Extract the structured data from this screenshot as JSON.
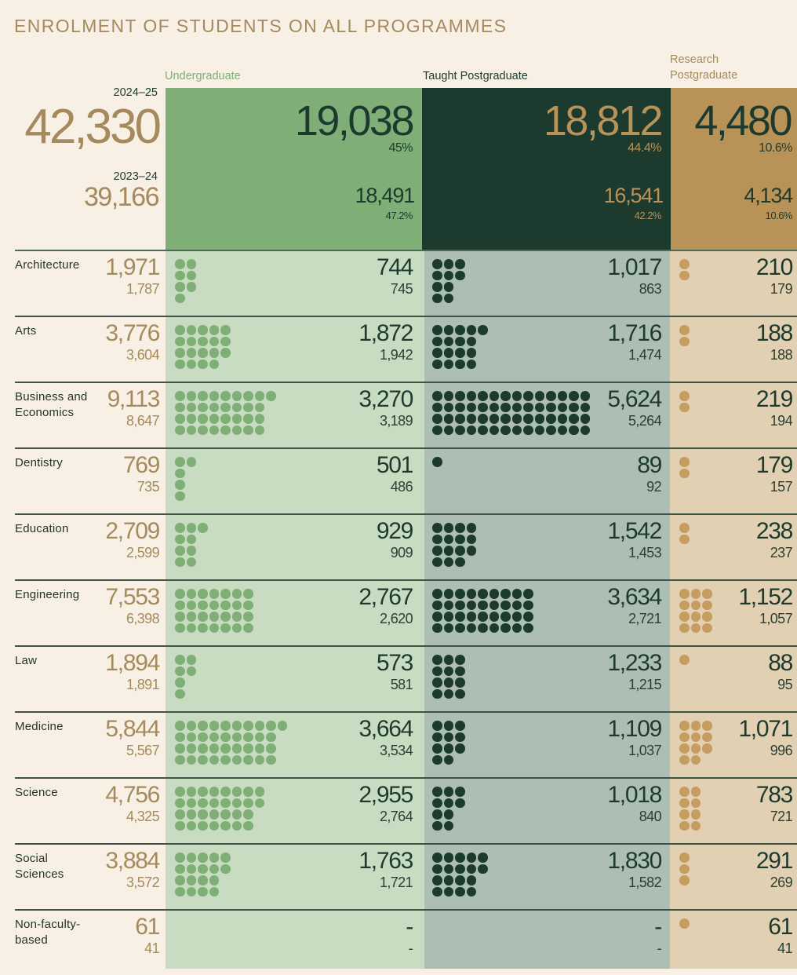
{
  "title": "ENROLMENT OF STUDENTS ON ALL PROGRAMMES",
  "colors": {
    "undergraduate": "#7fae77",
    "taught_postgraduate": "#1c3a2e",
    "research_postgraduate": "#b99258",
    "background": "#f8f0e4",
    "accent_text": "#a48a5c"
  },
  "summary": {
    "current_year": "2024–25",
    "current_total": "42,330",
    "previous_year": "2023–24",
    "previous_total": "39,166"
  },
  "columns": [
    {
      "key": "ug",
      "label": "Undergraduate",
      "current": "19,038",
      "current_pct": "45%",
      "previous": "18,491",
      "previous_pct": "47.2%"
    },
    {
      "key": "tpg",
      "label": "Taught Postgraduate",
      "current": "18,812",
      "current_pct": "44.4%",
      "previous": "16,541",
      "previous_pct": "42.2%"
    },
    {
      "key": "rpg",
      "label": "Research Postgraduate",
      "current": "4,480",
      "current_pct": "10.6%",
      "previous": "4,134",
      "previous_pct": "10.6%"
    }
  ],
  "chart_data": {
    "type": "table",
    "title": "ENROLMENT OF STUDENTS ON ALL PROGRAMMES",
    "unit_per_dot": 100,
    "years": [
      "2024–25",
      "2023–24"
    ],
    "series_names": [
      "Undergraduate",
      "Taught Postgraduate",
      "Research Postgraduate"
    ],
    "rows": [
      {
        "faculty": "Architecture",
        "total": "1,971",
        "total_prev": "1,787",
        "ug": 744,
        "ug_label": "744",
        "ug_prev": "745",
        "tpg": 1017,
        "tpg_label": "1,017",
        "tpg_prev": "863",
        "rpg": 210,
        "rpg_label": "210",
        "rpg_prev": "179"
      },
      {
        "faculty": "Arts",
        "total": "3,776",
        "total_prev": "3,604",
        "ug": 1872,
        "ug_label": "1,872",
        "ug_prev": "1,942",
        "tpg": 1716,
        "tpg_label": "1,716",
        "tpg_prev": "1,474",
        "rpg": 188,
        "rpg_label": "188",
        "rpg_prev": "188"
      },
      {
        "faculty": "Business and Economics",
        "total": "9,113",
        "total_prev": "8,647",
        "ug": 3270,
        "ug_label": "3,270",
        "ug_prev": "3,189",
        "tpg": 5624,
        "tpg_label": "5,624",
        "tpg_prev": "5,264",
        "rpg": 219,
        "rpg_label": "219",
        "rpg_prev": "194"
      },
      {
        "faculty": "Dentistry",
        "total": "769",
        "total_prev": "735",
        "ug": 501,
        "ug_label": "501",
        "ug_prev": "486",
        "tpg": 89,
        "tpg_label": "89",
        "tpg_prev": "92",
        "rpg": 179,
        "rpg_label": "179",
        "rpg_prev": "157"
      },
      {
        "faculty": "Education",
        "total": "2,709",
        "total_prev": "2,599",
        "ug": 929,
        "ug_label": "929",
        "ug_prev": "909",
        "tpg": 1542,
        "tpg_label": "1,542",
        "tpg_prev": "1,453",
        "rpg": 238,
        "rpg_label": "238",
        "rpg_prev": "237"
      },
      {
        "faculty": "Engineering",
        "total": "7,553",
        "total_prev": "6,398",
        "ug": 2767,
        "ug_label": "2,767",
        "ug_prev": "2,620",
        "tpg": 3634,
        "tpg_label": "3,634",
        "tpg_prev": "2,721",
        "rpg": 1152,
        "rpg_label": "1,152",
        "rpg_prev": "1,057"
      },
      {
        "faculty": "Law",
        "total": "1,894",
        "total_prev": "1,891",
        "ug": 573,
        "ug_label": "573",
        "ug_prev": "581",
        "tpg": 1233,
        "tpg_label": "1,233",
        "tpg_prev": "1,215",
        "rpg": 88,
        "rpg_label": "88",
        "rpg_prev": "95"
      },
      {
        "faculty": "Medicine",
        "total": "5,844",
        "total_prev": "5,567",
        "ug": 3664,
        "ug_label": "3,664",
        "ug_prev": "3,534",
        "tpg": 1109,
        "tpg_label": "1,109",
        "tpg_prev": "1,037",
        "rpg": 1071,
        "rpg_label": "1,071",
        "rpg_prev": "996"
      },
      {
        "faculty": "Science",
        "total": "4,756",
        "total_prev": "4,325",
        "ug": 2955,
        "ug_label": "2,955",
        "ug_prev": "2,764",
        "tpg": 1018,
        "tpg_label": "1,018",
        "tpg_prev": "840",
        "rpg": 783,
        "rpg_label": "783",
        "rpg_prev": "721"
      },
      {
        "faculty": "Social Sciences",
        "total": "3,884",
        "total_prev": "3,572",
        "ug": 1763,
        "ug_label": "1,763",
        "ug_prev": "1,721",
        "tpg": 1830,
        "tpg_label": "1,830",
        "tpg_prev": "1,582",
        "rpg": 291,
        "rpg_label": "291",
        "rpg_prev": "269"
      },
      {
        "faculty": "Non-faculty-based",
        "total": "61",
        "total_prev": "41",
        "ug": 0,
        "ug_label": "-",
        "ug_prev": "-",
        "tpg": 0,
        "tpg_label": "-",
        "tpg_prev": "-",
        "rpg": 61,
        "rpg_label": "61",
        "rpg_prev": "41"
      }
    ]
  }
}
